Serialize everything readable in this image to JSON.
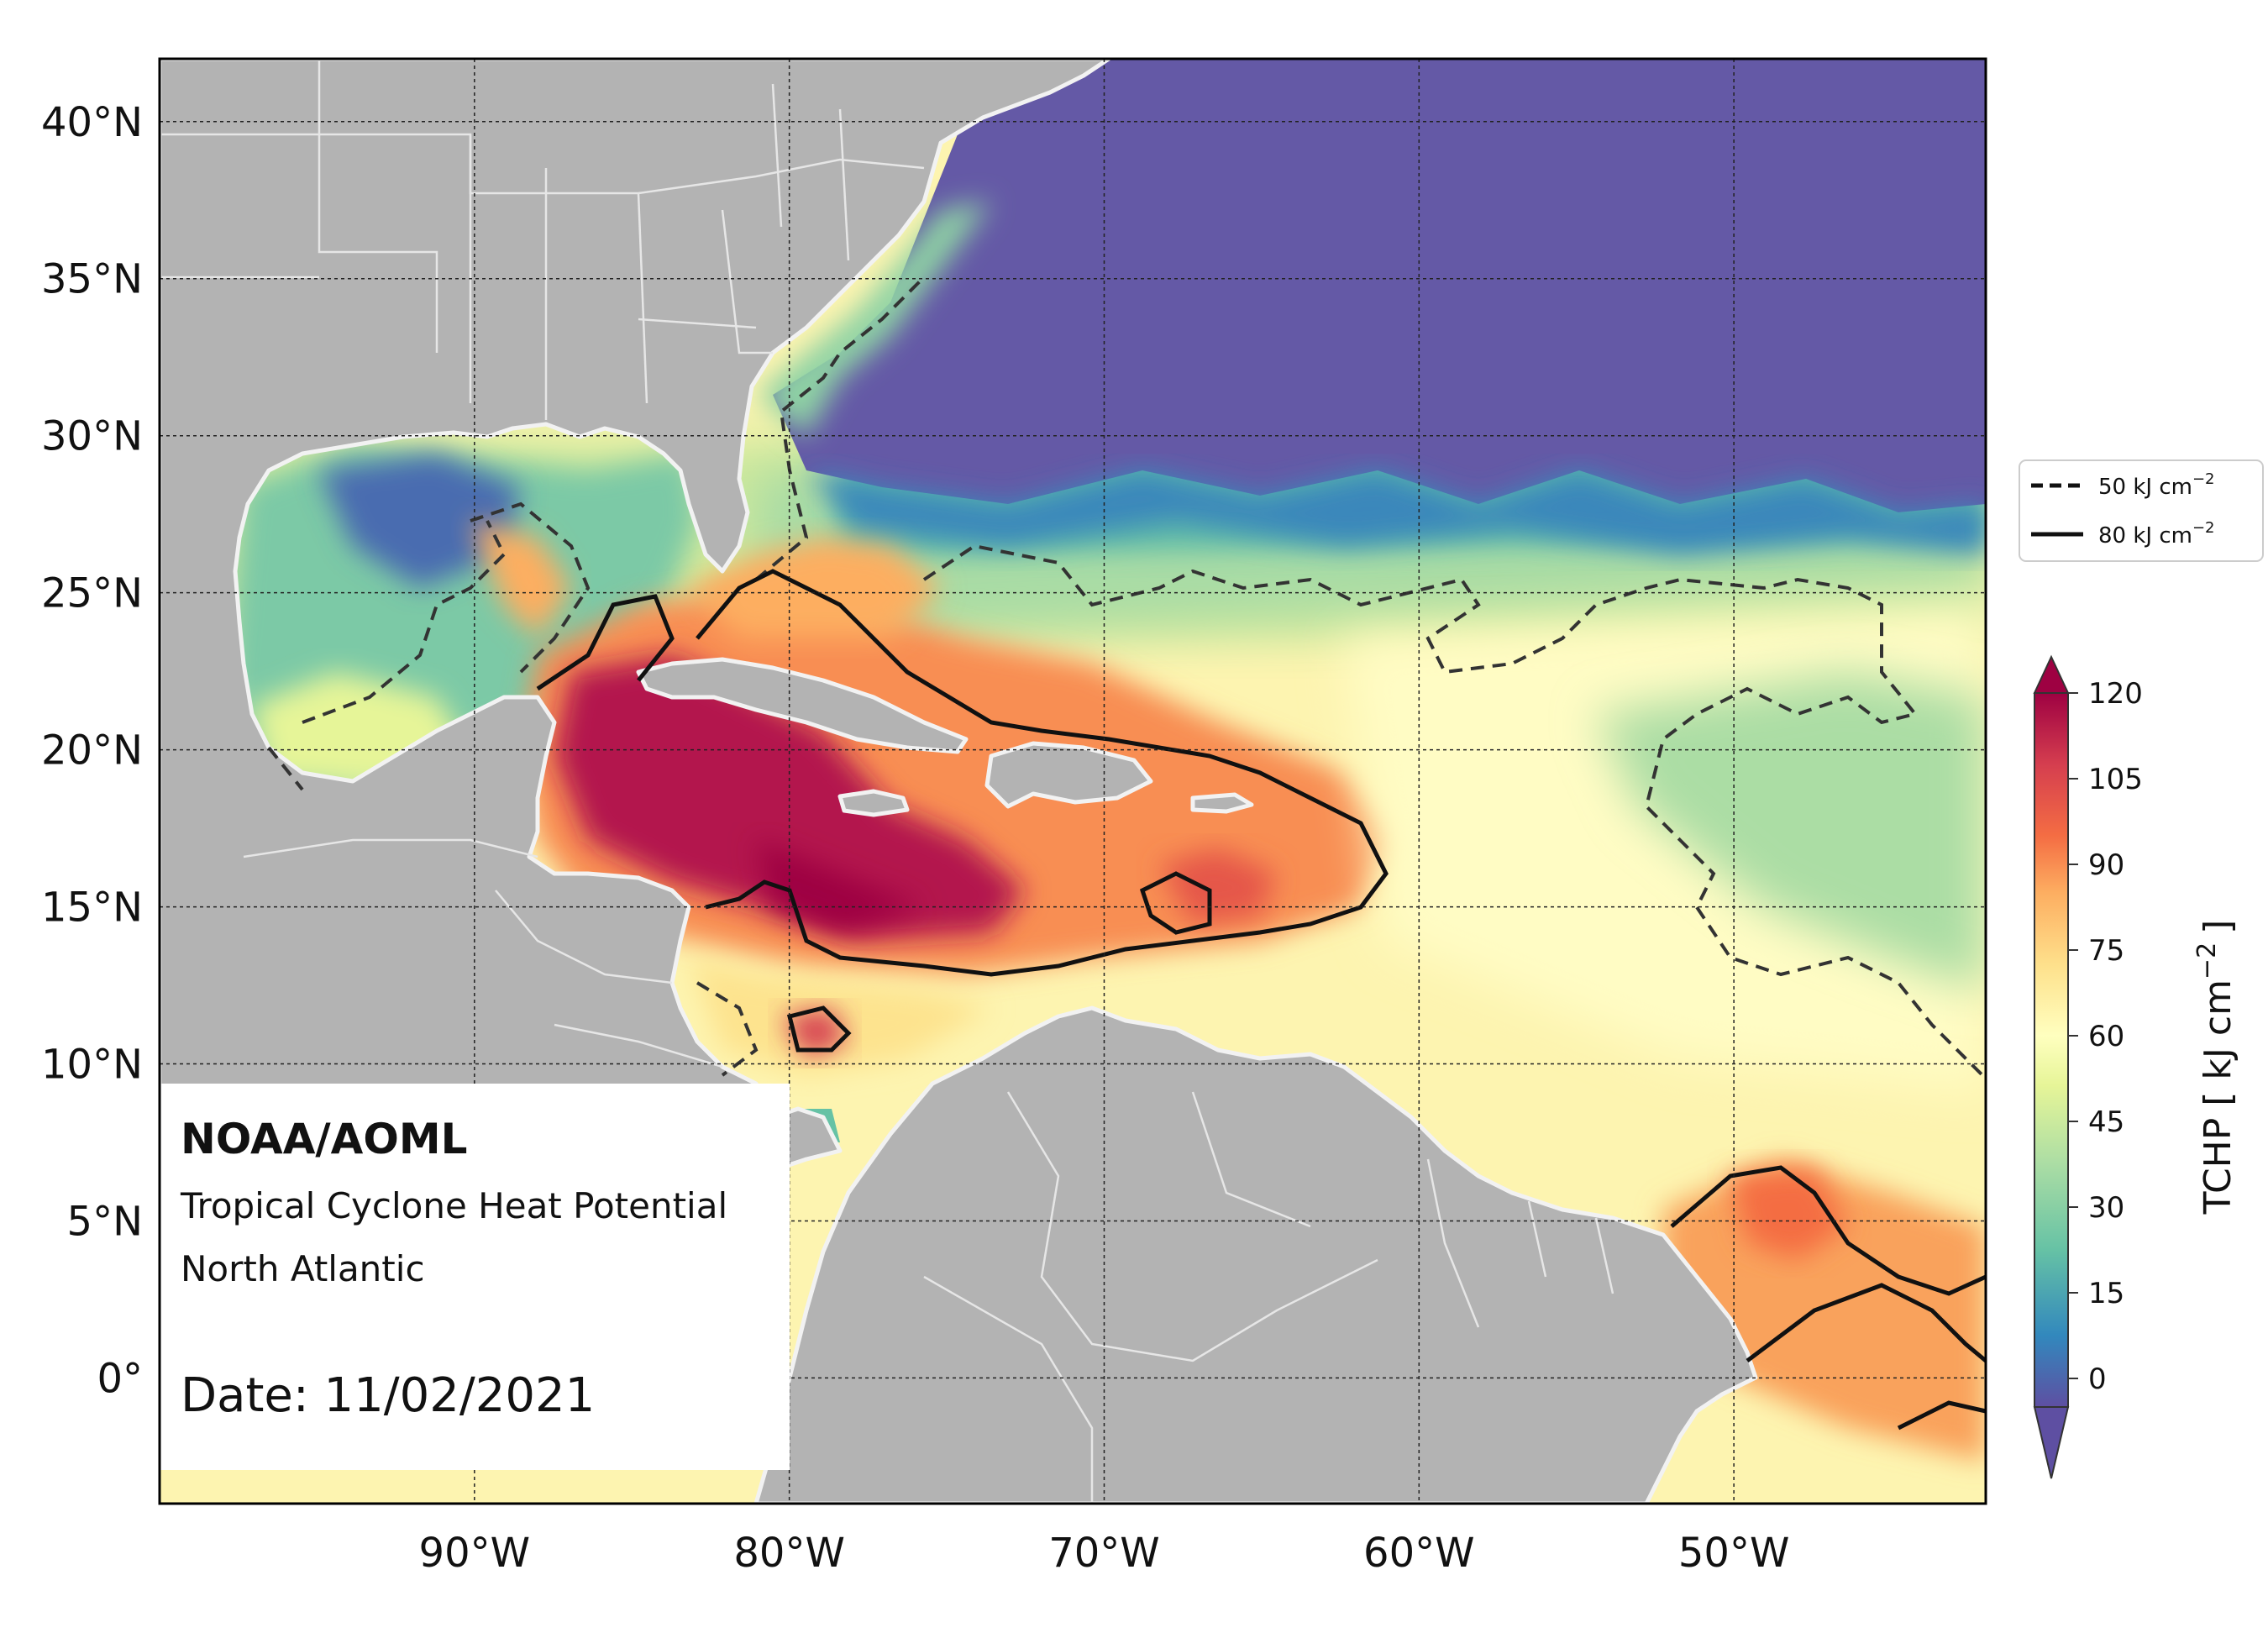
{
  "map": {
    "lon_range": [
      -100,
      -42
    ],
    "lat_range": [
      -4,
      42
    ],
    "grid": true,
    "lon_ticks": [
      {
        "value": -90,
        "label": "90°W"
      },
      {
        "value": -80,
        "label": "80°W"
      },
      {
        "value": -70,
        "label": "70°W"
      },
      {
        "value": -60,
        "label": "60°W"
      },
      {
        "value": -50,
        "label": "50°W"
      }
    ],
    "lat_ticks": [
      {
        "value": 40,
        "label": "40°N"
      },
      {
        "value": 35,
        "label": "35°N"
      },
      {
        "value": 30,
        "label": "30°N"
      },
      {
        "value": 25,
        "label": "25°N"
      },
      {
        "value": 20,
        "label": "20°N"
      },
      {
        "value": 15,
        "label": "15°N"
      },
      {
        "value": 10,
        "label": "10°N"
      },
      {
        "value": 5,
        "label": "5°N"
      },
      {
        "value": 0,
        "label": "0°"
      }
    ],
    "colors": {
      "land": "#b3b3b3",
      "border": "#e8e8e8",
      "coast": "#f2f2f2",
      "cold": "#6459a6"
    }
  },
  "info": {
    "org": "NOAA/AOML",
    "product": "Tropical Cyclone Heat Potential",
    "region": "North Atlantic",
    "date": "Date: 11/02/2021"
  },
  "legend": {
    "placement": "right",
    "items": [
      {
        "style": "dashed",
        "label": "50 kJ cm",
        "sup": "−2",
        "value": 50
      },
      {
        "style": "solid",
        "label": "80 kJ cm",
        "sup": "−2",
        "value": 80
      }
    ]
  },
  "colorbar": {
    "label_prefix": "TCHP [ kJ cm",
    "label_sup": "−2",
    "label_suffix": "]",
    "min": -5,
    "max": 120,
    "extend": "both",
    "ticks": [
      0,
      15,
      30,
      45,
      60,
      75,
      90,
      105,
      120
    ],
    "tick_labels": [
      "0",
      "15",
      "30",
      "45",
      "60",
      "75",
      "90",
      "105",
      "120"
    ],
    "colors": [
      "#5e4fa2",
      "#4a6cb0",
      "#3288bd",
      "#4fa7b0",
      "#66c2a5",
      "#8ed0a4",
      "#abdda4",
      "#cbea9d",
      "#e6f598",
      "#f5fbb1",
      "#ffffbf",
      "#fff0a6",
      "#fee08b",
      "#fdc675",
      "#fdae61",
      "#f88e52",
      "#f46d43",
      "#e55749",
      "#d53e4f",
      "#bd2150",
      "#9e0142"
    ]
  }
}
